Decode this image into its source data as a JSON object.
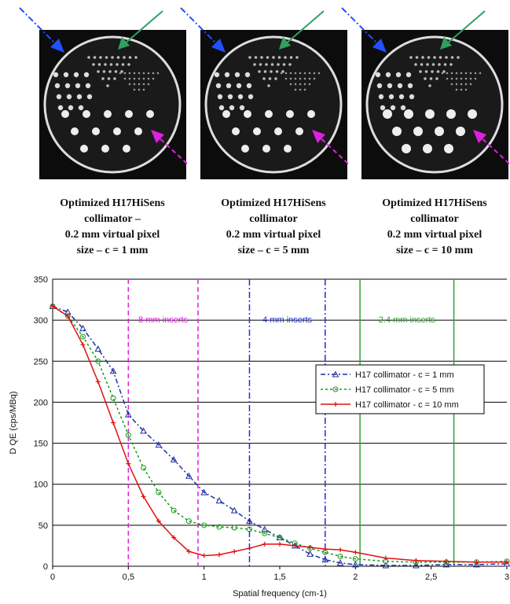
{
  "captions": [
    [
      "Optimized H17HiSens",
      "collimator –",
      "0.2 mm virtual pixel",
      "size – c = 1 mm"
    ],
    [
      "Optimized H17HiSens",
      "collimator",
      "0.2 mm virtual pixel",
      "size – c = 5 mm"
    ],
    [
      "Optimized H17HiSens",
      "collimator",
      "0.2 mm virtual pixel",
      "size – c = 10 mm"
    ]
  ],
  "chart_data": {
    "type": "line",
    "xlabel": "Spatial frequency (cm-1)",
    "ylabel": "D QE (cps/MBq)",
    "x": [
      0,
      0.1,
      0.2,
      0.3,
      0.4,
      0.5,
      0.6,
      0.7,
      0.8,
      0.9,
      1.0,
      1.1,
      1.2,
      1.3,
      1.4,
      1.5,
      1.6,
      1.7,
      1.8,
      1.9,
      2.0,
      2.2,
      2.4,
      2.6,
      2.8,
      3.0
    ],
    "series": [
      {
        "name": "H17 collimator - c = 1 mm",
        "color": "#1f2f9f",
        "marker": "triangle",
        "values": [
          317,
          310,
          290,
          265,
          238,
          185,
          165,
          148,
          130,
          110,
          90,
          80,
          68,
          55,
          45,
          35,
          25,
          15,
          8,
          4,
          2,
          1,
          1,
          2,
          2,
          3
        ]
      },
      {
        "name": "H17 collimator - c = 5 mm",
        "color": "#1a9a1a",
        "marker": "circle",
        "values": [
          317,
          305,
          280,
          250,
          205,
          160,
          120,
          90,
          68,
          55,
          50,
          48,
          47,
          45,
          40,
          35,
          28,
          22,
          17,
          12,
          9,
          6,
          5,
          5,
          5,
          6
        ]
      },
      {
        "name": "H17 collimator - c = 10 mm",
        "color": "#e01010",
        "marker": "plus",
        "values": [
          317,
          305,
          270,
          225,
          175,
          125,
          85,
          55,
          35,
          18,
          13,
          14,
          18,
          22,
          27,
          27,
          25,
          23,
          21,
          20,
          17,
          10,
          7,
          6,
          5,
          5
        ]
      }
    ],
    "annotations": [
      {
        "text": "8 mm inserts",
        "x": [
          0.5,
          0.96
        ],
        "color": "#e020e0",
        "style": "dashed"
      },
      {
        "text": "4 mm inserts",
        "x": [
          1.3,
          1.8
        ],
        "color": "#2030d0",
        "style": "dashdot"
      },
      {
        "text": "2.4 mm inserts",
        "x": [
          2.03,
          2.65
        ],
        "color": "#30a030",
        "style": "solid"
      }
    ],
    "xlim": [
      0,
      3
    ],
    "ylim": [
      0,
      350
    ],
    "xticks": [
      0,
      {
        "value": 0.5,
        "label": "0,5"
      },
      1,
      {
        "value": 1.5,
        "label": "1,5"
      },
      2,
      {
        "value": 2.5,
        "label": "2,5"
      },
      3
    ],
    "yticks": [
      0,
      50,
      100,
      150,
      200,
      250,
      300,
      350
    ],
    "grid": true,
    "legend": "right"
  }
}
